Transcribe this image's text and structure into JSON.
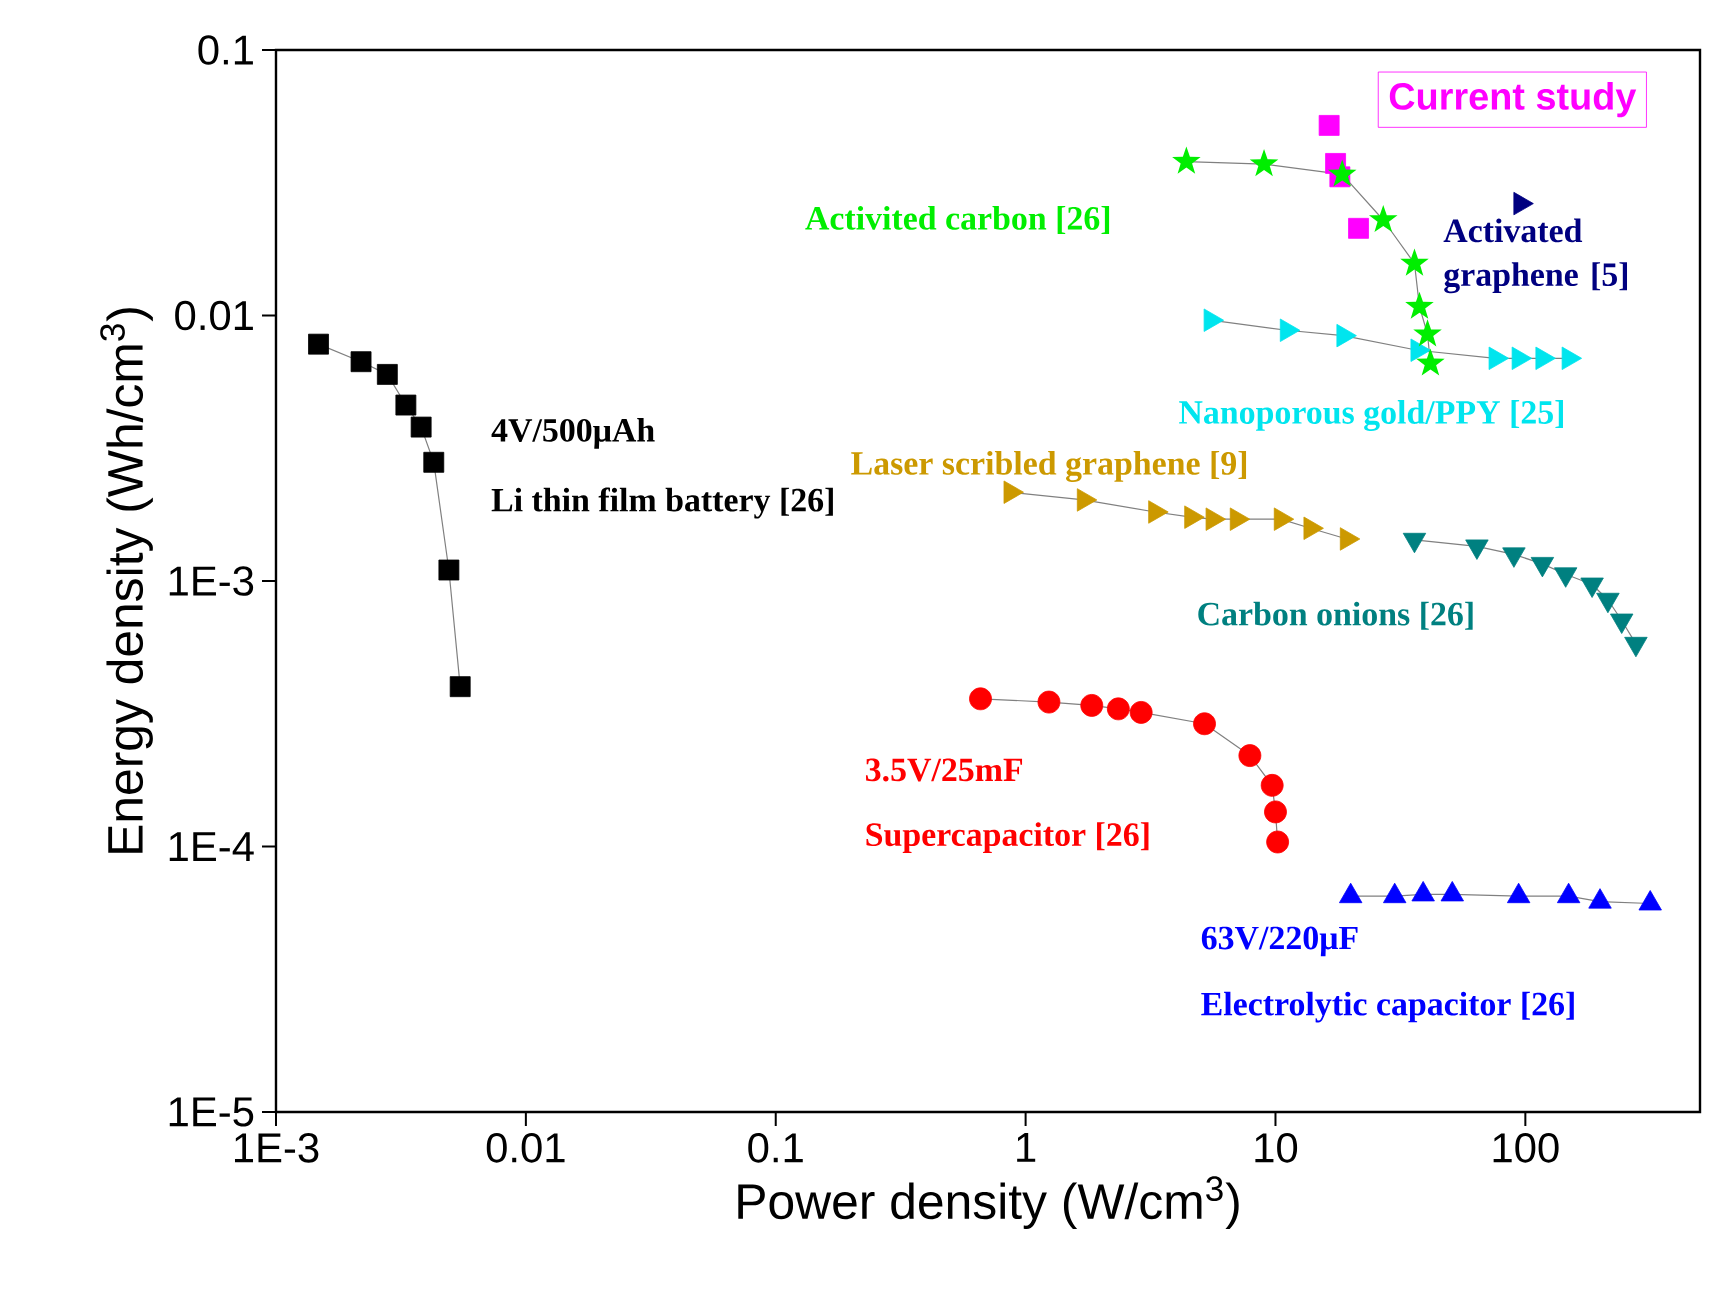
{
  "chart_data": {
    "type": "scatter",
    "xlabel": "Power density (W/cm$^{3}$)",
    "ylabel": "Energy density (Wh/cm$^{3}$)",
    "log": "xy",
    "xlim": [
      0.001,
      500
    ],
    "ylim": [
      1e-05,
      0.1
    ],
    "xticks": [
      {
        "value": 0.001,
        "label": "1E-3"
      },
      0.01,
      0.1,
      1,
      10,
      100
    ],
    "yticks": [
      {
        "value": 1e-05,
        "label": "1E-5"
      },
      {
        "value": 0.0001,
        "label": "1E-4"
      },
      {
        "value": 0.001,
        "label": "1E-3"
      },
      0.01,
      0.1
    ],
    "annotations": [
      "4V/500μAh",
      "3.5V/25mF",
      "63V/220μF"
    ],
    "series": [
      {
        "name": "Li thin film battery [26]",
        "type": "line",
        "color": "#000000",
        "marker": "square",
        "x": [
          0.00148,
          0.00219,
          0.00279,
          0.00331,
          0.00381,
          0.00428,
          0.00492,
          0.00546
        ],
        "values": [
          0.0078,
          0.0067,
          0.006,
          0.0046,
          0.0038,
          0.0028,
          0.0011,
          0.0004
        ]
      },
      {
        "name": "Supercapacitor [26]",
        "type": "line",
        "color": "#ff0000",
        "marker": "circle",
        "x": [
          0.66,
          1.24,
          1.84,
          2.35,
          2.9,
          5.2,
          7.9,
          9.7,
          10.0,
          10.2
        ],
        "values": [
          0.00036,
          0.00035,
          0.00034,
          0.00033,
          0.00032,
          0.00029,
          0.00022,
          0.00017,
          0.000135,
          0.000104
        ]
      },
      {
        "name": "Electrolytic capacitor [26]",
        "type": "line",
        "color": "#0000ff",
        "marker": "triangle",
        "x": [
          20,
          30,
          39,
          51,
          94,
          149,
          199,
          316
        ],
        "values": [
          6.5e-05,
          6.5e-05,
          6.6e-05,
          6.6e-05,
          6.5e-05,
          6.5e-05,
          6.2e-05,
          6.1e-05
        ]
      },
      {
        "name": "Carbon onions [26]",
        "type": "line",
        "color": "#008080",
        "marker": "triangle",
        "x": [
          36,
          64,
          90,
          117,
          145,
          185,
          214,
          243,
          277
        ],
        "values": [
          0.00143,
          0.00135,
          0.00126,
          0.00116,
          0.00106,
          0.00097,
          0.00085,
          0.00071,
          0.00058
        ]
      },
      {
        "name": "Laser scribled graphene [9]",
        "type": "line",
        "color": "#cc9900",
        "marker": "triangle",
        "x": [
          0.87,
          1.71,
          3.3,
          4.6,
          5.6,
          7.0,
          10.5,
          13.8,
          19.3
        ],
        "values": [
          0.00216,
          0.00202,
          0.00182,
          0.00174,
          0.00171,
          0.00171,
          0.00171,
          0.00158,
          0.00144
        ]
      },
      {
        "name": "Nanoporous gold/PPY [25]",
        "type": "line",
        "color": "#00e5ee",
        "marker": "triangle",
        "x": [
          5.5,
          11.1,
          18.7,
          37,
          76,
          94,
          117,
          149
        ],
        "values": [
          0.0096,
          0.0088,
          0.0084,
          0.0074,
          0.0069,
          0.0069,
          0.0069,
          0.0069
        ]
      },
      {
        "name": "Activited carbon [26]",
        "type": "line",
        "color": "#00ee00",
        "marker": "star",
        "x": [
          4.4,
          9.0,
          18.5,
          27,
          36,
          37.7,
          40.6,
          41.7
        ],
        "values": [
          0.038,
          0.0372,
          0.034,
          0.0229,
          0.0157,
          0.0108,
          0.0085,
          0.0066
        ]
      },
      {
        "name": "Current study",
        "color": "#ff00ff",
        "marker": "square",
        "x": [
          16.4,
          17.4,
          18.1,
          21.5
        ],
        "values": [
          0.052,
          0.0374,
          0.0333,
          0.0213
        ]
      },
      {
        "name": "Activated graphene [5]",
        "color": "#000080",
        "marker": "triangle",
        "x": [
          95.5
        ],
        "values": [
          0.0264
        ]
      }
    ]
  }
}
